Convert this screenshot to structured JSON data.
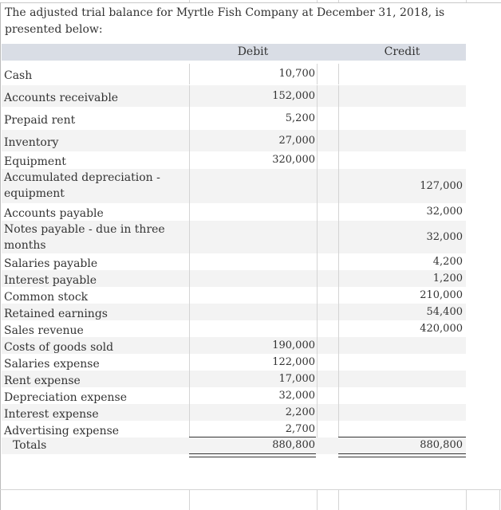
{
  "title": "The adjusted trial balance for Myrtle Fish Company at December 31, 2018, is presented below:",
  "headers": {
    "debit": "Debit",
    "credit": "Credit"
  },
  "rows": [
    {
      "label": "Cash",
      "debit": "10,700",
      "credit": ""
    },
    {
      "label": "Accounts receivable",
      "debit": "152,000",
      "credit": ""
    },
    {
      "label": "Prepaid rent",
      "debit": "5,200",
      "credit": ""
    },
    {
      "label": "Inventory",
      "debit": "27,000",
      "credit": ""
    },
    {
      "label": "Equipment",
      "debit": "320,000",
      "credit": ""
    },
    {
      "label": "Accumulated depreciation - equipment",
      "debit": "",
      "credit": "127,000"
    },
    {
      "label": "Accounts payable",
      "debit": "",
      "credit": "32,000"
    },
    {
      "label": "Notes payable - due in three months",
      "debit": "",
      "credit": "32,000"
    },
    {
      "label": "Salaries payable",
      "debit": "",
      "credit": "4,200"
    },
    {
      "label": "Interest payable",
      "debit": "",
      "credit": "1,200"
    },
    {
      "label": "Common stock",
      "debit": "",
      "credit": "210,000"
    },
    {
      "label": "Retained earnings",
      "debit": "",
      "credit": "54,400"
    },
    {
      "label": "Sales revenue",
      "debit": "",
      "credit": "420,000"
    },
    {
      "label": "Costs of goods sold",
      "debit": "190,000",
      "credit": ""
    },
    {
      "label": "Salaries expense",
      "debit": "122,000",
      "credit": ""
    },
    {
      "label": "Rent expense",
      "debit": "17,000",
      "credit": ""
    },
    {
      "label": "Depreciation expense",
      "debit": "32,000",
      "credit": ""
    },
    {
      "label": "Interest expense",
      "debit": "2,200",
      "credit": ""
    },
    {
      "label": "Advertising expense",
      "debit": "2,700",
      "credit": ""
    }
  ],
  "totals": {
    "label": "Totals",
    "debit": "880,800",
    "credit": "880,800"
  }
}
